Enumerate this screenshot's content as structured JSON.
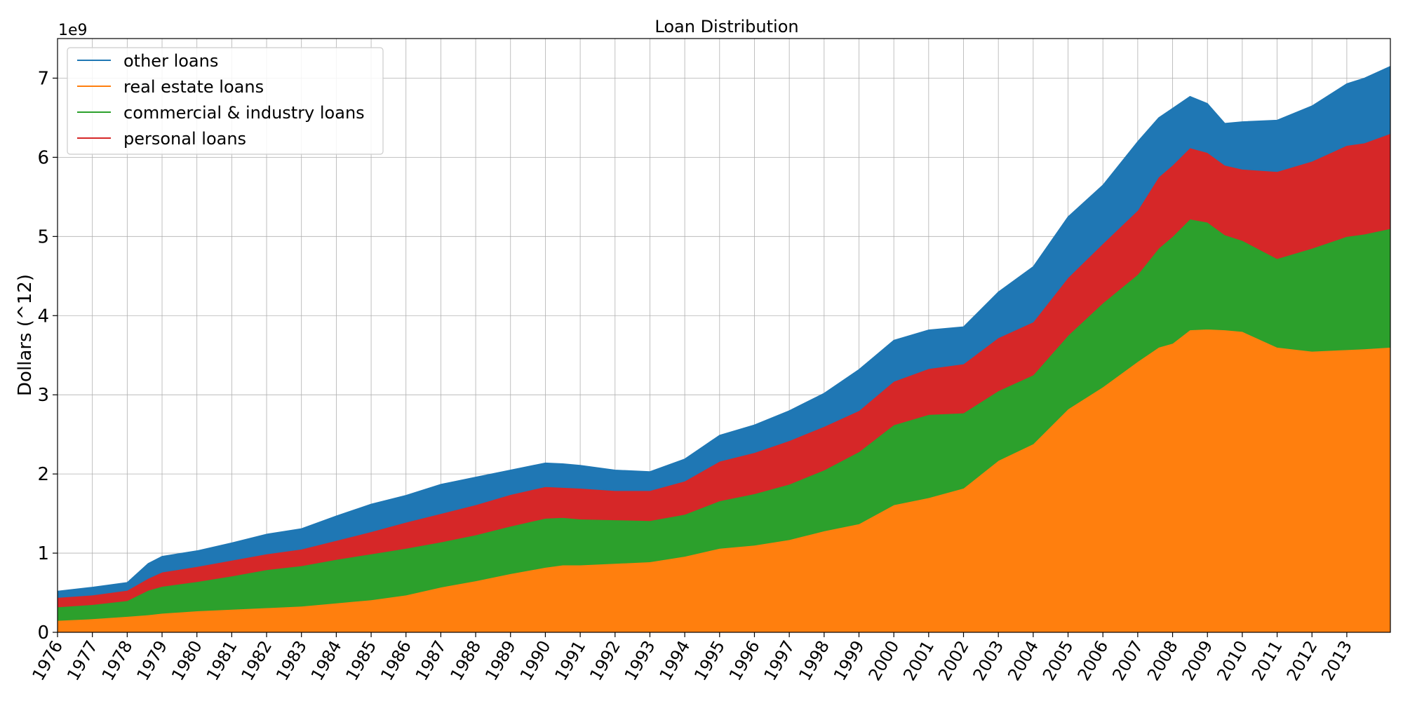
{
  "chart_data": {
    "type": "area",
    "stacked": true,
    "title": "Loan Distribution",
    "ylabel": "Dollars (^12)",
    "xlabel": "",
    "y_offset_label": "1e9",
    "y_scale": 1000000000,
    "ylim": [
      0,
      7.5
    ],
    "y_ticks": [
      0,
      1,
      2,
      3,
      4,
      5,
      6,
      7
    ],
    "xlim": [
      1976.0,
      2014.25
    ],
    "x_ticks": [
      "1976",
      "1977",
      "1978",
      "1979",
      "1980",
      "1981",
      "1982",
      "1983",
      "1984",
      "1985",
      "1986",
      "1987",
      "1988",
      "1989",
      "1990",
      "1991",
      "1992",
      "1993",
      "1994",
      "1995",
      "1996",
      "1997",
      "1998",
      "1999",
      "2000",
      "2001",
      "2002",
      "2003",
      "2004",
      "2005",
      "2006",
      "2007",
      "2008",
      "2009",
      "2010",
      "2011",
      "2012",
      "2013"
    ],
    "grid": true,
    "legend_position": "top-left",
    "x": [
      1976,
      1977,
      1978,
      1978.6,
      1979,
      1980,
      1981,
      1982,
      1983,
      1984,
      1985,
      1986,
      1987,
      1988,
      1989,
      1990,
      1990.5,
      1991,
      1992,
      1993,
      1994,
      1995,
      1996,
      1997,
      1998,
      1999,
      2000,
      2001,
      2002,
      2003,
      2004,
      2005,
      2006,
      2007,
      2007.6,
      2008,
      2008.5,
      2009,
      2009.5,
      2010,
      2011,
      2012,
      2013,
      2013.5,
      2014.25
    ],
    "series": [
      {
        "name": "real estate loans",
        "color": "#ff7f0e",
        "values": [
          0.15,
          0.17,
          0.2,
          0.22,
          0.24,
          0.27,
          0.29,
          0.31,
          0.33,
          0.37,
          0.41,
          0.47,
          0.57,
          0.65,
          0.74,
          0.82,
          0.85,
          0.85,
          0.87,
          0.89,
          0.96,
          1.06,
          1.1,
          1.17,
          1.28,
          1.37,
          1.61,
          1.7,
          1.82,
          2.17,
          2.38,
          2.82,
          3.1,
          3.42,
          3.6,
          3.65,
          3.82,
          3.83,
          3.82,
          3.8,
          3.6,
          3.55,
          3.57,
          3.58,
          3.6
        ]
      },
      {
        "name": "commercial & industry loans",
        "color": "#2ca02c",
        "values": [
          0.17,
          0.18,
          0.2,
          0.31,
          0.34,
          0.37,
          0.42,
          0.48,
          0.51,
          0.55,
          0.58,
          0.59,
          0.57,
          0.58,
          0.6,
          0.62,
          0.6,
          0.58,
          0.55,
          0.52,
          0.53,
          0.6,
          0.65,
          0.7,
          0.77,
          0.91,
          1.01,
          1.05,
          0.95,
          0.88,
          0.87,
          0.93,
          1.06,
          1.1,
          1.25,
          1.35,
          1.4,
          1.35,
          1.2,
          1.15,
          1.12,
          1.3,
          1.43,
          1.45,
          1.5
        ]
      },
      {
        "name": "personal loans",
        "color": "#d62728",
        "values": [
          0.12,
          0.12,
          0.13,
          0.15,
          0.18,
          0.19,
          0.2,
          0.2,
          0.21,
          0.24,
          0.28,
          0.33,
          0.36,
          0.38,
          0.4,
          0.4,
          0.38,
          0.39,
          0.37,
          0.38,
          0.42,
          0.5,
          0.52,
          0.55,
          0.55,
          0.52,
          0.55,
          0.58,
          0.62,
          0.67,
          0.67,
          0.73,
          0.75,
          0.81,
          0.9,
          0.9,
          0.9,
          0.88,
          0.88,
          0.9,
          1.1,
          1.1,
          1.15,
          1.15,
          1.2
        ]
      },
      {
        "name": "other loans",
        "color": "#1f77b4",
        "values": [
          0.08,
          0.1,
          0.1,
          0.19,
          0.2,
          0.2,
          0.22,
          0.25,
          0.26,
          0.31,
          0.35,
          0.34,
          0.37,
          0.35,
          0.31,
          0.3,
          0.3,
          0.29,
          0.26,
          0.24,
          0.28,
          0.33,
          0.35,
          0.38,
          0.42,
          0.52,
          0.52,
          0.49,
          0.47,
          0.58,
          0.7,
          0.77,
          0.74,
          0.87,
          0.75,
          0.72,
          0.65,
          0.62,
          0.53,
          0.6,
          0.65,
          0.7,
          0.78,
          0.82,
          0.85
        ]
      }
    ],
    "legend_order": [
      "other loans",
      "real estate loans",
      "commercial & industry loans",
      "personal loans"
    ]
  }
}
